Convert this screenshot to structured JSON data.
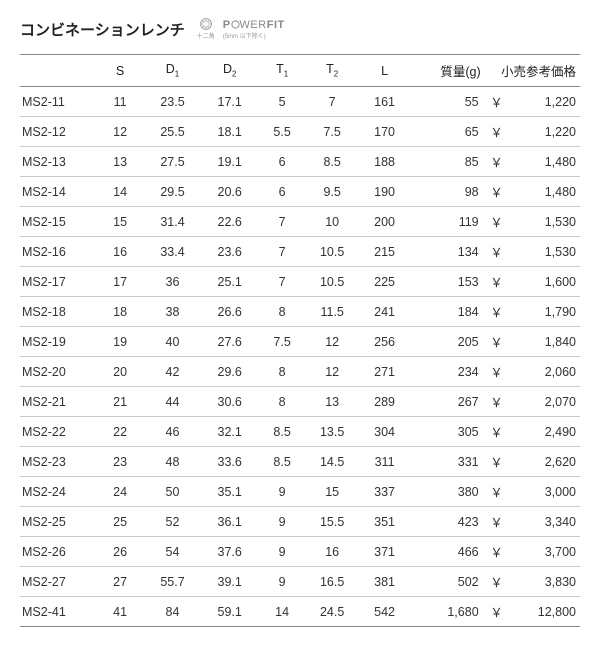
{
  "header": {
    "title": "コンビネーションレンチ",
    "icon_sub": "十二角",
    "brand": "POWERFIT",
    "brand_sub": "(5mm 以下除く)"
  },
  "table": {
    "columns": [
      "",
      "S",
      "D1",
      "D2",
      "T1",
      "T2",
      "L",
      "質量(g)",
      "小売参考価格"
    ],
    "currency": "￥",
    "rows": [
      {
        "code": "MS2-11",
        "s": "11",
        "d1": "23.5",
        "d2": "17.1",
        "t1": "5",
        "t2": "7",
        "l": "161",
        "mass": "55",
        "price": "1,220"
      },
      {
        "code": "MS2-12",
        "s": "12",
        "d1": "25.5",
        "d2": "18.1",
        "t1": "5.5",
        "t2": "7.5",
        "l": "170",
        "mass": "65",
        "price": "1,220"
      },
      {
        "code": "MS2-13",
        "s": "13",
        "d1": "27.5",
        "d2": "19.1",
        "t1": "6",
        "t2": "8.5",
        "l": "188",
        "mass": "85",
        "price": "1,480"
      },
      {
        "code": "MS2-14",
        "s": "14",
        "d1": "29.5",
        "d2": "20.6",
        "t1": "6",
        "t2": "9.5",
        "l": "190",
        "mass": "98",
        "price": "1,480"
      },
      {
        "code": "MS2-15",
        "s": "15",
        "d1": "31.4",
        "d2": "22.6",
        "t1": "7",
        "t2": "10",
        "l": "200",
        "mass": "119",
        "price": "1,530"
      },
      {
        "code": "MS2-16",
        "s": "16",
        "d1": "33.4",
        "d2": "23.6",
        "t1": "7",
        "t2": "10.5",
        "l": "215",
        "mass": "134",
        "price": "1,530"
      },
      {
        "code": "MS2-17",
        "s": "17",
        "d1": "36",
        "d2": "25.1",
        "t1": "7",
        "t2": "10.5",
        "l": "225",
        "mass": "153",
        "price": "1,600"
      },
      {
        "code": "MS2-18",
        "s": "18",
        "d1": "38",
        "d2": "26.6",
        "t1": "8",
        "t2": "11.5",
        "l": "241",
        "mass": "184",
        "price": "1,790"
      },
      {
        "code": "MS2-19",
        "s": "19",
        "d1": "40",
        "d2": "27.6",
        "t1": "7.5",
        "t2": "12",
        "l": "256",
        "mass": "205",
        "price": "1,840"
      },
      {
        "code": "MS2-20",
        "s": "20",
        "d1": "42",
        "d2": "29.6",
        "t1": "8",
        "t2": "12",
        "l": "271",
        "mass": "234",
        "price": "2,060"
      },
      {
        "code": "MS2-21",
        "s": "21",
        "d1": "44",
        "d2": "30.6",
        "t1": "8",
        "t2": "13",
        "l": "289",
        "mass": "267",
        "price": "2,070"
      },
      {
        "code": "MS2-22",
        "s": "22",
        "d1": "46",
        "d2": "32.1",
        "t1": "8.5",
        "t2": "13.5",
        "l": "304",
        "mass": "305",
        "price": "2,490"
      },
      {
        "code": "MS2-23",
        "s": "23",
        "d1": "48",
        "d2": "33.6",
        "t1": "8.5",
        "t2": "14.5",
        "l": "311",
        "mass": "331",
        "price": "2,620"
      },
      {
        "code": "MS2-24",
        "s": "24",
        "d1": "50",
        "d2": "35.1",
        "t1": "9",
        "t2": "15",
        "l": "337",
        "mass": "380",
        "price": "3,000"
      },
      {
        "code": "MS2-25",
        "s": "25",
        "d1": "52",
        "d2": "36.1",
        "t1": "9",
        "t2": "15.5",
        "l": "351",
        "mass": "423",
        "price": "3,340"
      },
      {
        "code": "MS2-26",
        "s": "26",
        "d1": "54",
        "d2": "37.6",
        "t1": "9",
        "t2": "16",
        "l": "371",
        "mass": "466",
        "price": "3,700"
      },
      {
        "code": "MS2-27",
        "s": "27",
        "d1": "55.7",
        "d2": "39.1",
        "t1": "9",
        "t2": "16.5",
        "l": "381",
        "mass": "502",
        "price": "3,830"
      },
      {
        "code": "MS2-41",
        "s": "41",
        "d1": "84",
        "d2": "59.1",
        "t1": "14",
        "t2": "24.5",
        "l": "542",
        "mass": "1,680",
        "price": "12,800"
      }
    ]
  }
}
